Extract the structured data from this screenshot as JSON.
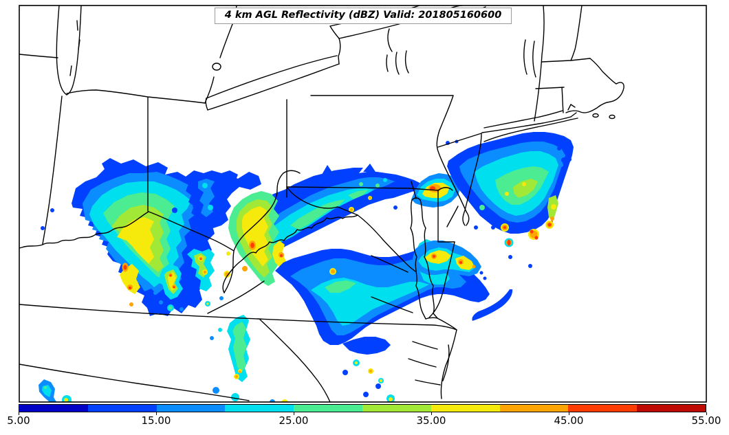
{
  "title": {
    "text": "4 km AGL Reflectivity (dBZ) Valid: 201805160600"
  },
  "colorbar": {
    "units": "dBZ",
    "level_bounds": [
      5,
      10,
      15,
      20,
      25,
      30,
      35,
      40,
      45,
      50,
      55
    ],
    "colors": [
      "#0000C6",
      "#0140FF",
      "#0B8DFF",
      "#00DFED",
      "#4BEC92",
      "#A2E836",
      "#F5EA0C",
      "#FFA400",
      "#FF3D00",
      "#BE0A00"
    ],
    "ticks": [
      "5.00",
      "15.00",
      "25.00",
      "35.00",
      "45.00",
      "55.00"
    ],
    "tick_values": [
      5,
      15,
      25,
      35,
      45,
      55
    ]
  },
  "frame_color": "#000000",
  "border_color": "#000000"
}
